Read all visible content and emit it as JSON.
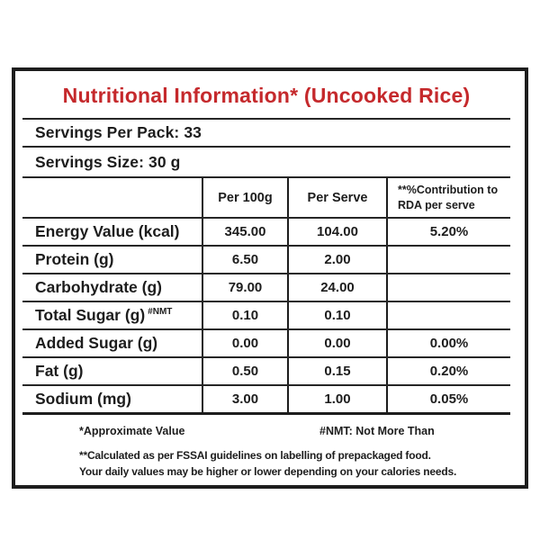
{
  "label": {
    "title": "Nutritional Information* (Uncooked Rice)",
    "servings_per_pack": "Servings Per Pack: 33",
    "servings_size": "Servings Size: 30 g"
  },
  "table": {
    "columns": [
      "",
      "Per 100g",
      "Per Serve",
      "**%Contribution to RDA per serve"
    ],
    "rows": [
      {
        "label": "Energy Value (kcal)",
        "note": "",
        "per_100g": "345.00",
        "per_serve": "104.00",
        "rda": "5.20%"
      },
      {
        "label": "Protein (g)",
        "note": "",
        "per_100g": "6.50",
        "per_serve": "2.00",
        "rda": ""
      },
      {
        "label": "Carbohydrate (g)",
        "note": "",
        "per_100g": "79.00",
        "per_serve": "24.00",
        "rda": ""
      },
      {
        "label": "Total Sugar (g)",
        "note": "#NMT",
        "per_100g": "0.10",
        "per_serve": "0.10",
        "rda": ""
      },
      {
        "label": "Added Sugar (g)",
        "note": "",
        "per_100g": "0.00",
        "per_serve": "0.00",
        "rda": "0.00%"
      },
      {
        "label": "Fat (g)",
        "note": "",
        "per_100g": "0.50",
        "per_serve": "0.15",
        "rda": "0.20%"
      },
      {
        "label": "Sodium (mg)",
        "note": "",
        "per_100g": "3.00",
        "per_serve": "1.00",
        "rda": "0.05%"
      }
    ]
  },
  "footnotes": {
    "approximate": "*Approximate Value",
    "nmt": "#NMT: Not More Than",
    "fssai": "**Calculated as per FSSAI guidelines on labelling of prepackaged food.",
    "daily": "Your daily values may be higher or lower depending on your calories needs."
  },
  "colors": {
    "title_red": "#c5292c",
    "ink": "#1d1d1d",
    "background": "#ffffff"
  }
}
